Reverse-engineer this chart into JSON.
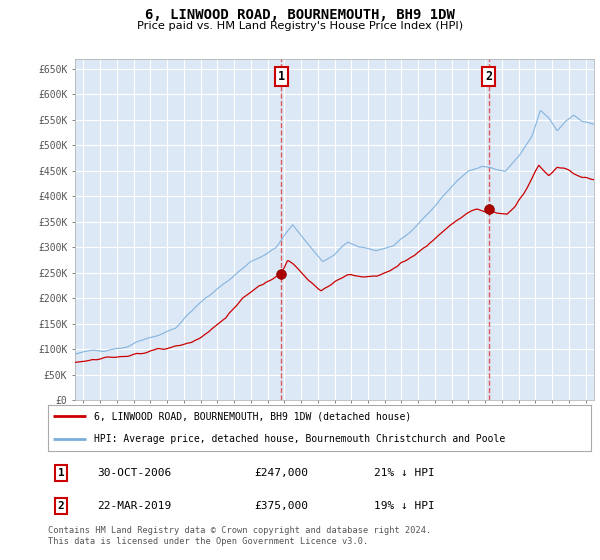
{
  "title": "6, LINWOOD ROAD, BOURNEMOUTH, BH9 1DW",
  "subtitle": "Price paid vs. HM Land Registry's House Price Index (HPI)",
  "legend_line1": "6, LINWOOD ROAD, BOURNEMOUTH, BH9 1DW (detached house)",
  "legend_line2": "HPI: Average price, detached house, Bournemouth Christchurch and Poole",
  "transaction1_date": "30-OCT-2006",
  "transaction1_price": "£247,000",
  "transaction1_hpi": "21% ↓ HPI",
  "transaction2_date": "22-MAR-2019",
  "transaction2_price": "£375,000",
  "transaction2_hpi": "19% ↓ HPI",
  "footer": "Contains HM Land Registry data © Crown copyright and database right 2024.\nThis data is licensed under the Open Government Licence v3.0.",
  "ylim": [
    0,
    670000
  ],
  "yticks": [
    0,
    50000,
    100000,
    150000,
    200000,
    250000,
    300000,
    350000,
    400000,
    450000,
    500000,
    550000,
    600000,
    650000
  ],
  "ytick_labels": [
    "£0",
    "£50K",
    "£100K",
    "£150K",
    "£200K",
    "£250K",
    "£300K",
    "£350K",
    "£400K",
    "£450K",
    "£500K",
    "£550K",
    "£600K",
    "£650K"
  ],
  "xlim_start": 1994.5,
  "xlim_end": 2025.5,
  "transaction1_x": 2006.83,
  "transaction1_y": 247000,
  "transaction2_x": 2019.22,
  "transaction2_y": 375000,
  "house_color": "#cc0000",
  "hpi_color": "#7aaedc",
  "background_color": "#dce8f5",
  "grid_color": "#ffffff",
  "vline_color": "#dd4444"
}
